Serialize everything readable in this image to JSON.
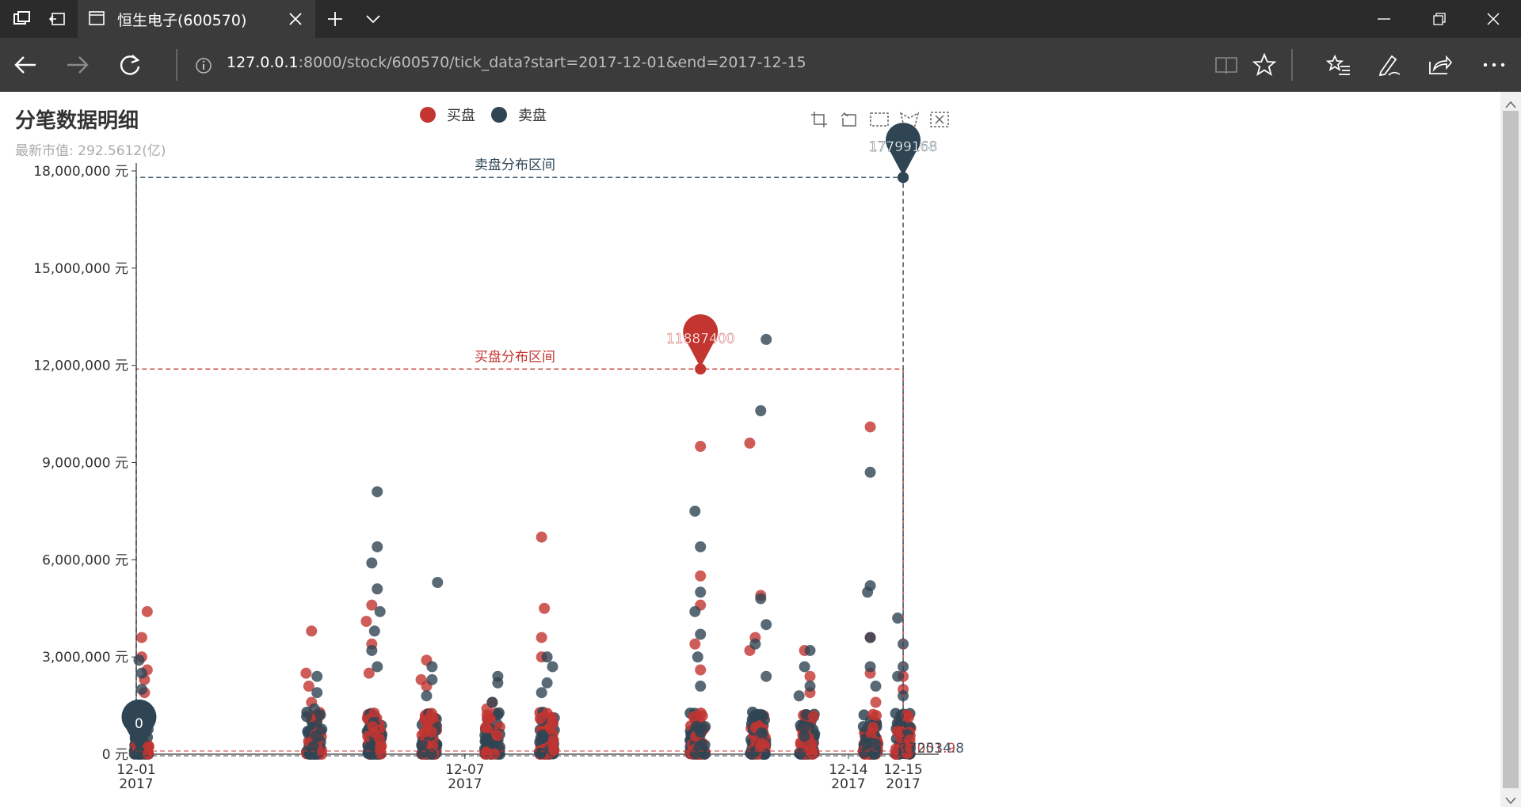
{
  "browser": {
    "tab_title": "恒生电子(600570)",
    "url_host": "127.0.0.1",
    "url_rest": ":8000/stock/600570/tick_data?start=2017-12-01&end=2017-12-15"
  },
  "chart_header": {
    "title": "分笔数据明细",
    "subtitle": "最新市值: 292.5612(亿)"
  },
  "colors": {
    "buy": "#c23531",
    "sell": "#2f4554"
  },
  "chart_data": {
    "type": "scatter",
    "title": "分笔数据明细",
    "subtitle": "最新市值: 292.5612(亿)",
    "x_ticks": [
      {
        "label": "12-01",
        "year": "2017",
        "pos": 0
      },
      {
        "label": "12-07",
        "year": "2017",
        "pos": 6
      },
      {
        "label": "12-14",
        "year": "2017",
        "pos": 13
      },
      {
        "label": "12-15",
        "year": "2017",
        "pos": 14
      }
    ],
    "xlim": [
      0,
      14.65
    ],
    "y_ticks": [
      {
        "label": "0 元",
        "value": 0
      },
      {
        "label": "3,000,000 元",
        "value": 3000000
      },
      {
        "label": "6,000,000 元",
        "value": 6000000
      },
      {
        "label": "9,000,000 元",
        "value": 9000000
      },
      {
        "label": "12,000,000 元",
        "value": 12000000
      },
      {
        "label": "15,000,000 元",
        "value": 15000000
      },
      {
        "label": "18,000,000 元",
        "value": 18000000
      }
    ],
    "ylim": [
      0,
      18000000
    ],
    "legend": [
      "买盘",
      "卖盘"
    ],
    "series": [
      {
        "name": "买盘",
        "points": [
          [
            0.1,
            3600000
          ],
          [
            0.2,
            4400000
          ],
          [
            0.2,
            2600000
          ],
          [
            0.15,
            2300000
          ],
          [
            0.15,
            1900000
          ],
          [
            0.1,
            3000000
          ],
          [
            3.2,
            3800000
          ],
          [
            3.1,
            2500000
          ],
          [
            3.15,
            2100000
          ],
          [
            3.2,
            1600000
          ],
          [
            4.2,
            4100000
          ],
          [
            4.3,
            4600000
          ],
          [
            4.3,
            3400000
          ],
          [
            4.25,
            2500000
          ],
          [
            5.2,
            2300000
          ],
          [
            5.3,
            2900000
          ],
          [
            5.3,
            2100000
          ],
          [
            6.4,
            1400000
          ],
          [
            6.5,
            1600000
          ],
          [
            7.4,
            6700000
          ],
          [
            7.45,
            4500000
          ],
          [
            7.4,
            3600000
          ],
          [
            7.4,
            3000000
          ],
          [
            10.3,
            11887400
          ],
          [
            10.3,
            9500000
          ],
          [
            10.3,
            5500000
          ],
          [
            10.3,
            4600000
          ],
          [
            10.2,
            3400000
          ],
          [
            10.3,
            2600000
          ],
          [
            11.2,
            9600000
          ],
          [
            11.4,
            4900000
          ],
          [
            11.3,
            3600000
          ],
          [
            11.2,
            3200000
          ],
          [
            12.2,
            3200000
          ],
          [
            12.3,
            2400000
          ],
          [
            12.3,
            1900000
          ],
          [
            13.4,
            10100000
          ],
          [
            13.4,
            3600000
          ],
          [
            13.4,
            2500000
          ],
          [
            13.5,
            1600000
          ],
          [
            14.0,
            2400000
          ],
          [
            14.0,
            2000000
          ]
        ],
        "markpoint_label": "11887400",
        "markpoint_value": 11887400,
        "markpoint_x": 10.3,
        "markline_label": "买盘分布区间",
        "markline_value": 11887400,
        "markline_end_label": "62051.9"
      },
      {
        "name": "卖盘",
        "points": [
          [
            0.05,
            2900000
          ],
          [
            0.1,
            2500000
          ],
          [
            0.1,
            2000000
          ],
          [
            0.1,
            1400000
          ],
          [
            3.3,
            2400000
          ],
          [
            3.3,
            1900000
          ],
          [
            3.25,
            1400000
          ],
          [
            4.4,
            8100000
          ],
          [
            4.4,
            6400000
          ],
          [
            4.3,
            5900000
          ],
          [
            4.4,
            5100000
          ],
          [
            4.45,
            4400000
          ],
          [
            4.35,
            3800000
          ],
          [
            4.3,
            3200000
          ],
          [
            4.4,
            2700000
          ],
          [
            5.5,
            5300000
          ],
          [
            5.4,
            2700000
          ],
          [
            5.4,
            2300000
          ],
          [
            5.3,
            1800000
          ],
          [
            6.5,
            1600000
          ],
          [
            6.6,
            2400000
          ],
          [
            6.6,
            2200000
          ],
          [
            7.5,
            3000000
          ],
          [
            7.6,
            2700000
          ],
          [
            7.5,
            2200000
          ],
          [
            7.4,
            1900000
          ],
          [
            10.2,
            7500000
          ],
          [
            10.3,
            6400000
          ],
          [
            10.3,
            5000000
          ],
          [
            10.2,
            4400000
          ],
          [
            10.3,
            3700000
          ],
          [
            10.25,
            3000000
          ],
          [
            10.3,
            2100000
          ],
          [
            11.5,
            12800000
          ],
          [
            11.4,
            10600000
          ],
          [
            11.4,
            4800000
          ],
          [
            11.5,
            4000000
          ],
          [
            11.3,
            3400000
          ],
          [
            11.5,
            2400000
          ],
          [
            12.3,
            3200000
          ],
          [
            12.2,
            2700000
          ],
          [
            12.3,
            2100000
          ],
          [
            12.1,
            1800000
          ],
          [
            13.4,
            8700000
          ],
          [
            13.4,
            5200000
          ],
          [
            13.35,
            5000000
          ],
          [
            13.4,
            3600000
          ],
          [
            13.4,
            2700000
          ],
          [
            13.5,
            2100000
          ],
          [
            14.0,
            17799168
          ],
          [
            13.9,
            4200000
          ],
          [
            14.0,
            3400000
          ],
          [
            14.0,
            2700000
          ],
          [
            13.9,
            2400000
          ],
          [
            14.0,
            1800000
          ]
        ],
        "markpoint_label": "17799168",
        "markpoint_value": 17799168,
        "markpoint_x": 14.0,
        "markpoint_min_label": "0",
        "markline_label": "卖盘分布区间",
        "markline_value": 17799168,
        "markline_end_label": "172034.8"
      }
    ],
    "dense_clusters": [
      0.1,
      3.25,
      4.35,
      5.35,
      6.5,
      7.5,
      10.25,
      11.35,
      12.25,
      13.4,
      14.0
    ]
  }
}
